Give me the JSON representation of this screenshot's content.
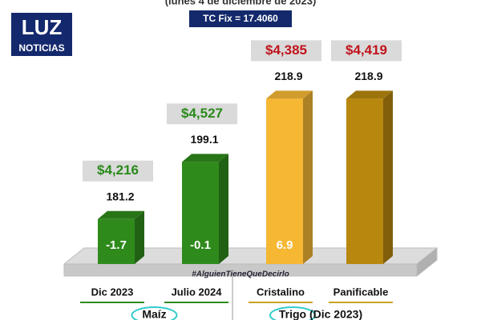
{
  "chart_data": {
    "type": "bar",
    "subtitle": "(lunes 4 de diciembre de 2023)",
    "exchange_rate": "TC Fix = 17.4060",
    "logo": {
      "top": "LUZ",
      "bottom": "NOTICIAS"
    },
    "watermark": "#AlguienTieneQueDecirlo",
    "categories": [
      "Dic 2023",
      "Julio 2024",
      "Cristalino",
      "Panificable"
    ],
    "values": [
      181.2,
      199.1,
      218.9,
      218.9
    ],
    "colors": [
      "#2f8a1c",
      "#2f8a1c",
      "#f6b733",
      "#b8870e"
    ],
    "changes": [
      -1.7,
      -0.1,
      6.9,
      null
    ],
    "prices": [
      4216,
      4527,
      4385,
      4419
    ],
    "price_labels": [
      "$4,216",
      "$4,527",
      "$4,385",
      "$4,419"
    ],
    "price_colors": [
      "#2a8a1a",
      "#2a8a1a",
      "#c0141c",
      "#c0141c"
    ],
    "groups": [
      {
        "label": "Maíz",
        "count": 2
      },
      {
        "label": "Trigo (Dic 2023)",
        "count": 2
      }
    ],
    "ylim": [
      167.1,
      221
    ]
  }
}
